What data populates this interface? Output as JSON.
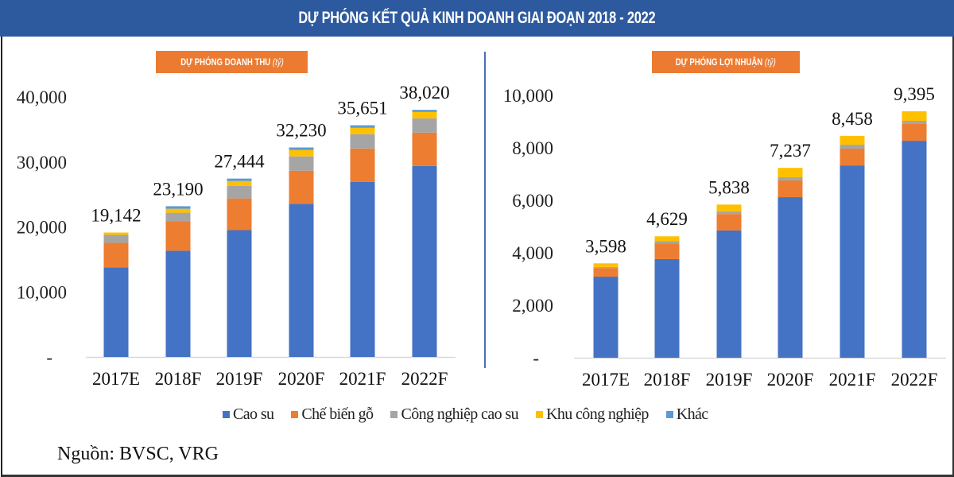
{
  "header": {
    "title": "DỰ PHÓNG KẾT QUẢ KINH DOANH GIAI ĐOẠN 2018 - 2022"
  },
  "colors": {
    "header_bg": "#2d5a9e",
    "label_bg": "#ec7b31",
    "Cao su": "#4472c4",
    "Chế biến gỗ": "#ed7d31",
    "Công nghiệp cao su": "#a5a5a5",
    "Khu công nghiệp": "#ffc000",
    "Khác": "#5b9bd5"
  },
  "left_panel": {
    "label": "DỰ PHÓNG DOANH THU",
    "unit": "(tỷ)"
  },
  "right_panel": {
    "label": "DỰ PHÓNG LỢI NHUẬN",
    "unit": "(tỷ)"
  },
  "legend": [
    {
      "name": "Cao su",
      "color": "#4472c4"
    },
    {
      "name": "Chế biến gỗ",
      "color": "#ed7d31"
    },
    {
      "name": "Công nghiệp cao su",
      "color": "#a5a5a5"
    },
    {
      "name": "Khu công nghiệp",
      "color": "#ffc000"
    },
    {
      "name": "Khác",
      "color": "#5b9bd5"
    }
  ],
  "source": "Nguồn: BVSC, VRG",
  "chart_data": [
    {
      "type": "bar",
      "stacked": true,
      "title": "DỰ PHÓNG DOANH THU (tỷ)",
      "categories": [
        "2017E",
        "2018F",
        "2019F",
        "2020F",
        "2021F",
        "2022F"
      ],
      "yticks": [
        "-",
        "10,000",
        "20,000",
        "30,000",
        "40,000"
      ],
      "ylim": [
        0,
        40000
      ],
      "totals": [
        "19,142",
        "23,190",
        "27,444",
        "32,230",
        "35,651",
        "38,020"
      ],
      "total_values": [
        19142,
        23190,
        27444,
        32230,
        35651,
        38020
      ],
      "series": [
        {
          "name": "Cao su",
          "values": [
            13780,
            16340,
            19510,
            23540,
            26950,
            29390
          ]
        },
        {
          "name": "Chế biến gỗ",
          "values": [
            3780,
            4510,
            4880,
            5120,
            5120,
            5120
          ]
        },
        {
          "name": "Công nghiệp cao su",
          "values": [
            1220,
            1340,
            1950,
            2200,
            2200,
            2200
          ]
        },
        {
          "name": "Khu công nghiệp",
          "values": [
            362,
            610,
            730,
            980,
            980,
            980
          ]
        },
        {
          "name": "Khác",
          "values": [
            0,
            390,
            374,
            390,
            401,
            330
          ]
        }
      ],
      "grid": false,
      "legend": "bottom"
    },
    {
      "type": "bar",
      "stacked": true,
      "title": "DỰ PHÓNG LỢI NHUẬN (tỷ)",
      "categories": [
        "2017E",
        "2018F",
        "2019F",
        "2020F",
        "2021F",
        "2022F"
      ],
      "yticks": [
        "-",
        "2,000",
        "4,000",
        "6,000",
        "8,000",
        "10,000"
      ],
      "ylim": [
        0,
        10000
      ],
      "totals": [
        "3,598",
        "4,629",
        "5,838",
        "7,237",
        "8,458",
        "9,395"
      ],
      "total_values": [
        3598,
        4629,
        5838,
        7237,
        8458,
        9395
      ],
      "series": [
        {
          "name": "Cao su",
          "values": [
            3090,
            3760,
            4850,
            6120,
            7330,
            8270
          ]
        },
        {
          "name": "Chế biến gỗ",
          "values": [
            330,
            600,
            630,
            640,
            640,
            640
          ]
        },
        {
          "name": "Công nghiệp cao su",
          "values": [
            40,
            90,
            100,
            120,
            150,
            120
          ]
        },
        {
          "name": "Khu công nghiệp",
          "values": [
            138,
            179,
            258,
            357,
            338,
            365
          ]
        },
        {
          "name": "Khác",
          "values": [
            0,
            0,
            0,
            0,
            0,
            0
          ]
        }
      ],
      "grid": false,
      "legend": "bottom"
    }
  ]
}
